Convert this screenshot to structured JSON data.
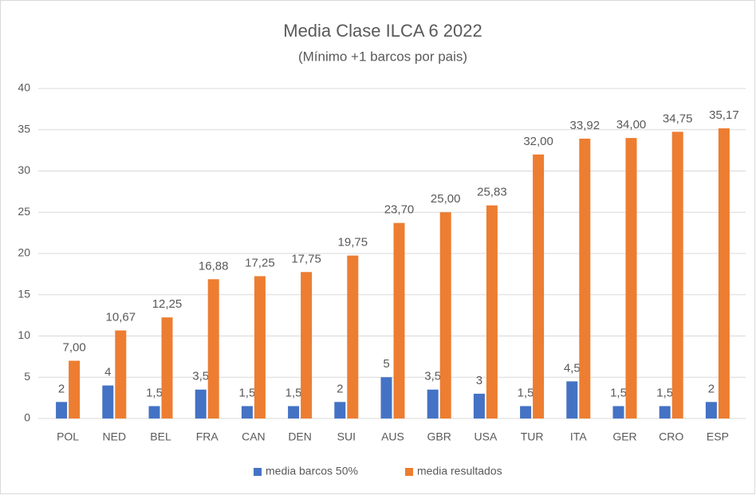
{
  "chart_data": {
    "type": "bar",
    "title": "Media Clase ILCA 6 2022",
    "subtitle": "(Mínimo +1 barcos por pais)",
    "categories": [
      "POL",
      "NED",
      "BEL",
      "FRA",
      "CAN",
      "DEN",
      "SUI",
      "AUS",
      "GBR",
      "USA",
      "TUR",
      "ITA",
      "GER",
      "CRO",
      "ESP"
    ],
    "series": [
      {
        "name": "media barcos 50%",
        "color": "#4472c4",
        "values": [
          2,
          4,
          1.5,
          3.5,
          1.5,
          1.5,
          2,
          5,
          3.5,
          3,
          1.5,
          4.5,
          1.5,
          1.5,
          2
        ],
        "value_labels": [
          "2",
          "4",
          "1,5",
          "3,5",
          "1,5",
          "1,5",
          "2",
          "5",
          "3,5",
          "3",
          "1,5",
          "4,5",
          "1,5",
          "1,5",
          "2"
        ]
      },
      {
        "name": "media resultados",
        "color": "#ed7d31",
        "values": [
          7.0,
          10.67,
          12.25,
          16.88,
          17.25,
          17.75,
          19.75,
          23.7,
          25.0,
          25.83,
          32.0,
          33.92,
          34.0,
          34.75,
          35.17
        ],
        "value_labels": [
          "7,00",
          "10,67",
          "12,25",
          "16,88",
          "17,25",
          "17,75",
          "19,75",
          "23,70",
          "25,00",
          "25,83",
          "32,00",
          "33,92",
          "34,00",
          "34,75",
          "35,17"
        ]
      }
    ],
    "ylim": [
      0,
      40
    ],
    "yticks": [
      0,
      5,
      10,
      15,
      20,
      25,
      30,
      35,
      40
    ],
    "grid": true,
    "legend": "bottom"
  }
}
